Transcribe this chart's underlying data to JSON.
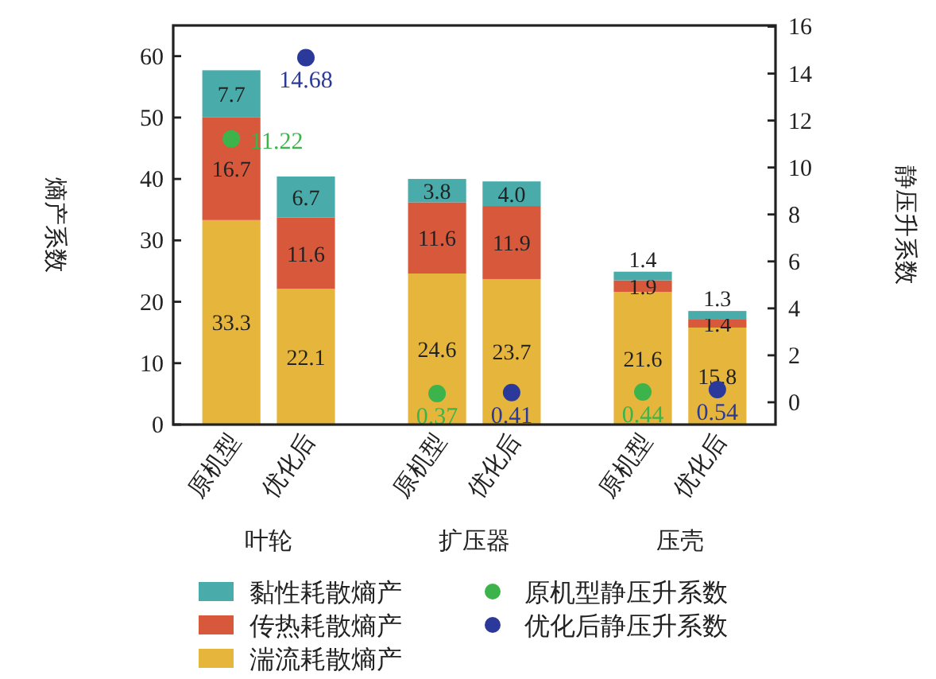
{
  "chart_data": {
    "type": "bar",
    "stacked": true,
    "ylabel": "熵产系数",
    "y2label": "静压升系数",
    "categories": [
      "原机型",
      "优化后",
      "原机型",
      "优化后",
      "原机型",
      "优化后"
    ],
    "annotations": [
      "叶轮",
      "扩压器",
      "压壳"
    ],
    "series": [
      {
        "name": "湍流耗散熵产",
        "color": "#e6b53c",
        "values": [
          33.3,
          22.1,
          24.6,
          23.7,
          21.6,
          15.8
        ],
        "value_labels": [
          "33.3",
          "22.1",
          "24.6",
          "23.7",
          "21.6",
          "15.8"
        ]
      },
      {
        "name": "传热耗散熵产",
        "color": "#d8583c",
        "values": [
          16.7,
          11.6,
          11.6,
          11.9,
          1.9,
          1.4
        ],
        "value_labels": [
          "16.7",
          "11.6",
          "11.6",
          "11.9",
          "1.9",
          "1.4"
        ]
      },
      {
        "name": "黏性耗散熵产",
        "color": "#4aabab",
        "values": [
          7.7,
          6.7,
          3.8,
          4.0,
          1.4,
          1.3
        ],
        "value_labels": [
          "7.7",
          "6.7",
          "3.8",
          "4.0",
          "1.4",
          "1.3"
        ]
      },
      {
        "name": "原机型静压升系数",
        "type": "scatter",
        "axis": "y2",
        "color": "#3cb44b",
        "values": [
          11.22,
          null,
          0.37,
          null,
          0.44,
          null
        ],
        "value_labels": [
          "11.22",
          null,
          "0.37",
          null,
          "0.44",
          null
        ]
      },
      {
        "name": "优化后静压升系数",
        "type": "scatter",
        "axis": "y2",
        "color": "#2b3a9a",
        "values": [
          null,
          14.68,
          null,
          0.41,
          null,
          0.54
        ],
        "value_labels": [
          null,
          "14.68",
          null,
          "0.41",
          null,
          "0.54"
        ]
      }
    ],
    "ylim": [
      0,
      65
    ],
    "yticks": [
      0,
      10,
      20,
      30,
      40,
      50,
      60
    ],
    "y2lim": [
      -0.95,
      16.05
    ],
    "y2ticks": [
      0,
      2,
      4,
      6,
      8,
      10,
      12,
      14,
      16
    ],
    "legend": "bottom",
    "marker": "circle"
  }
}
